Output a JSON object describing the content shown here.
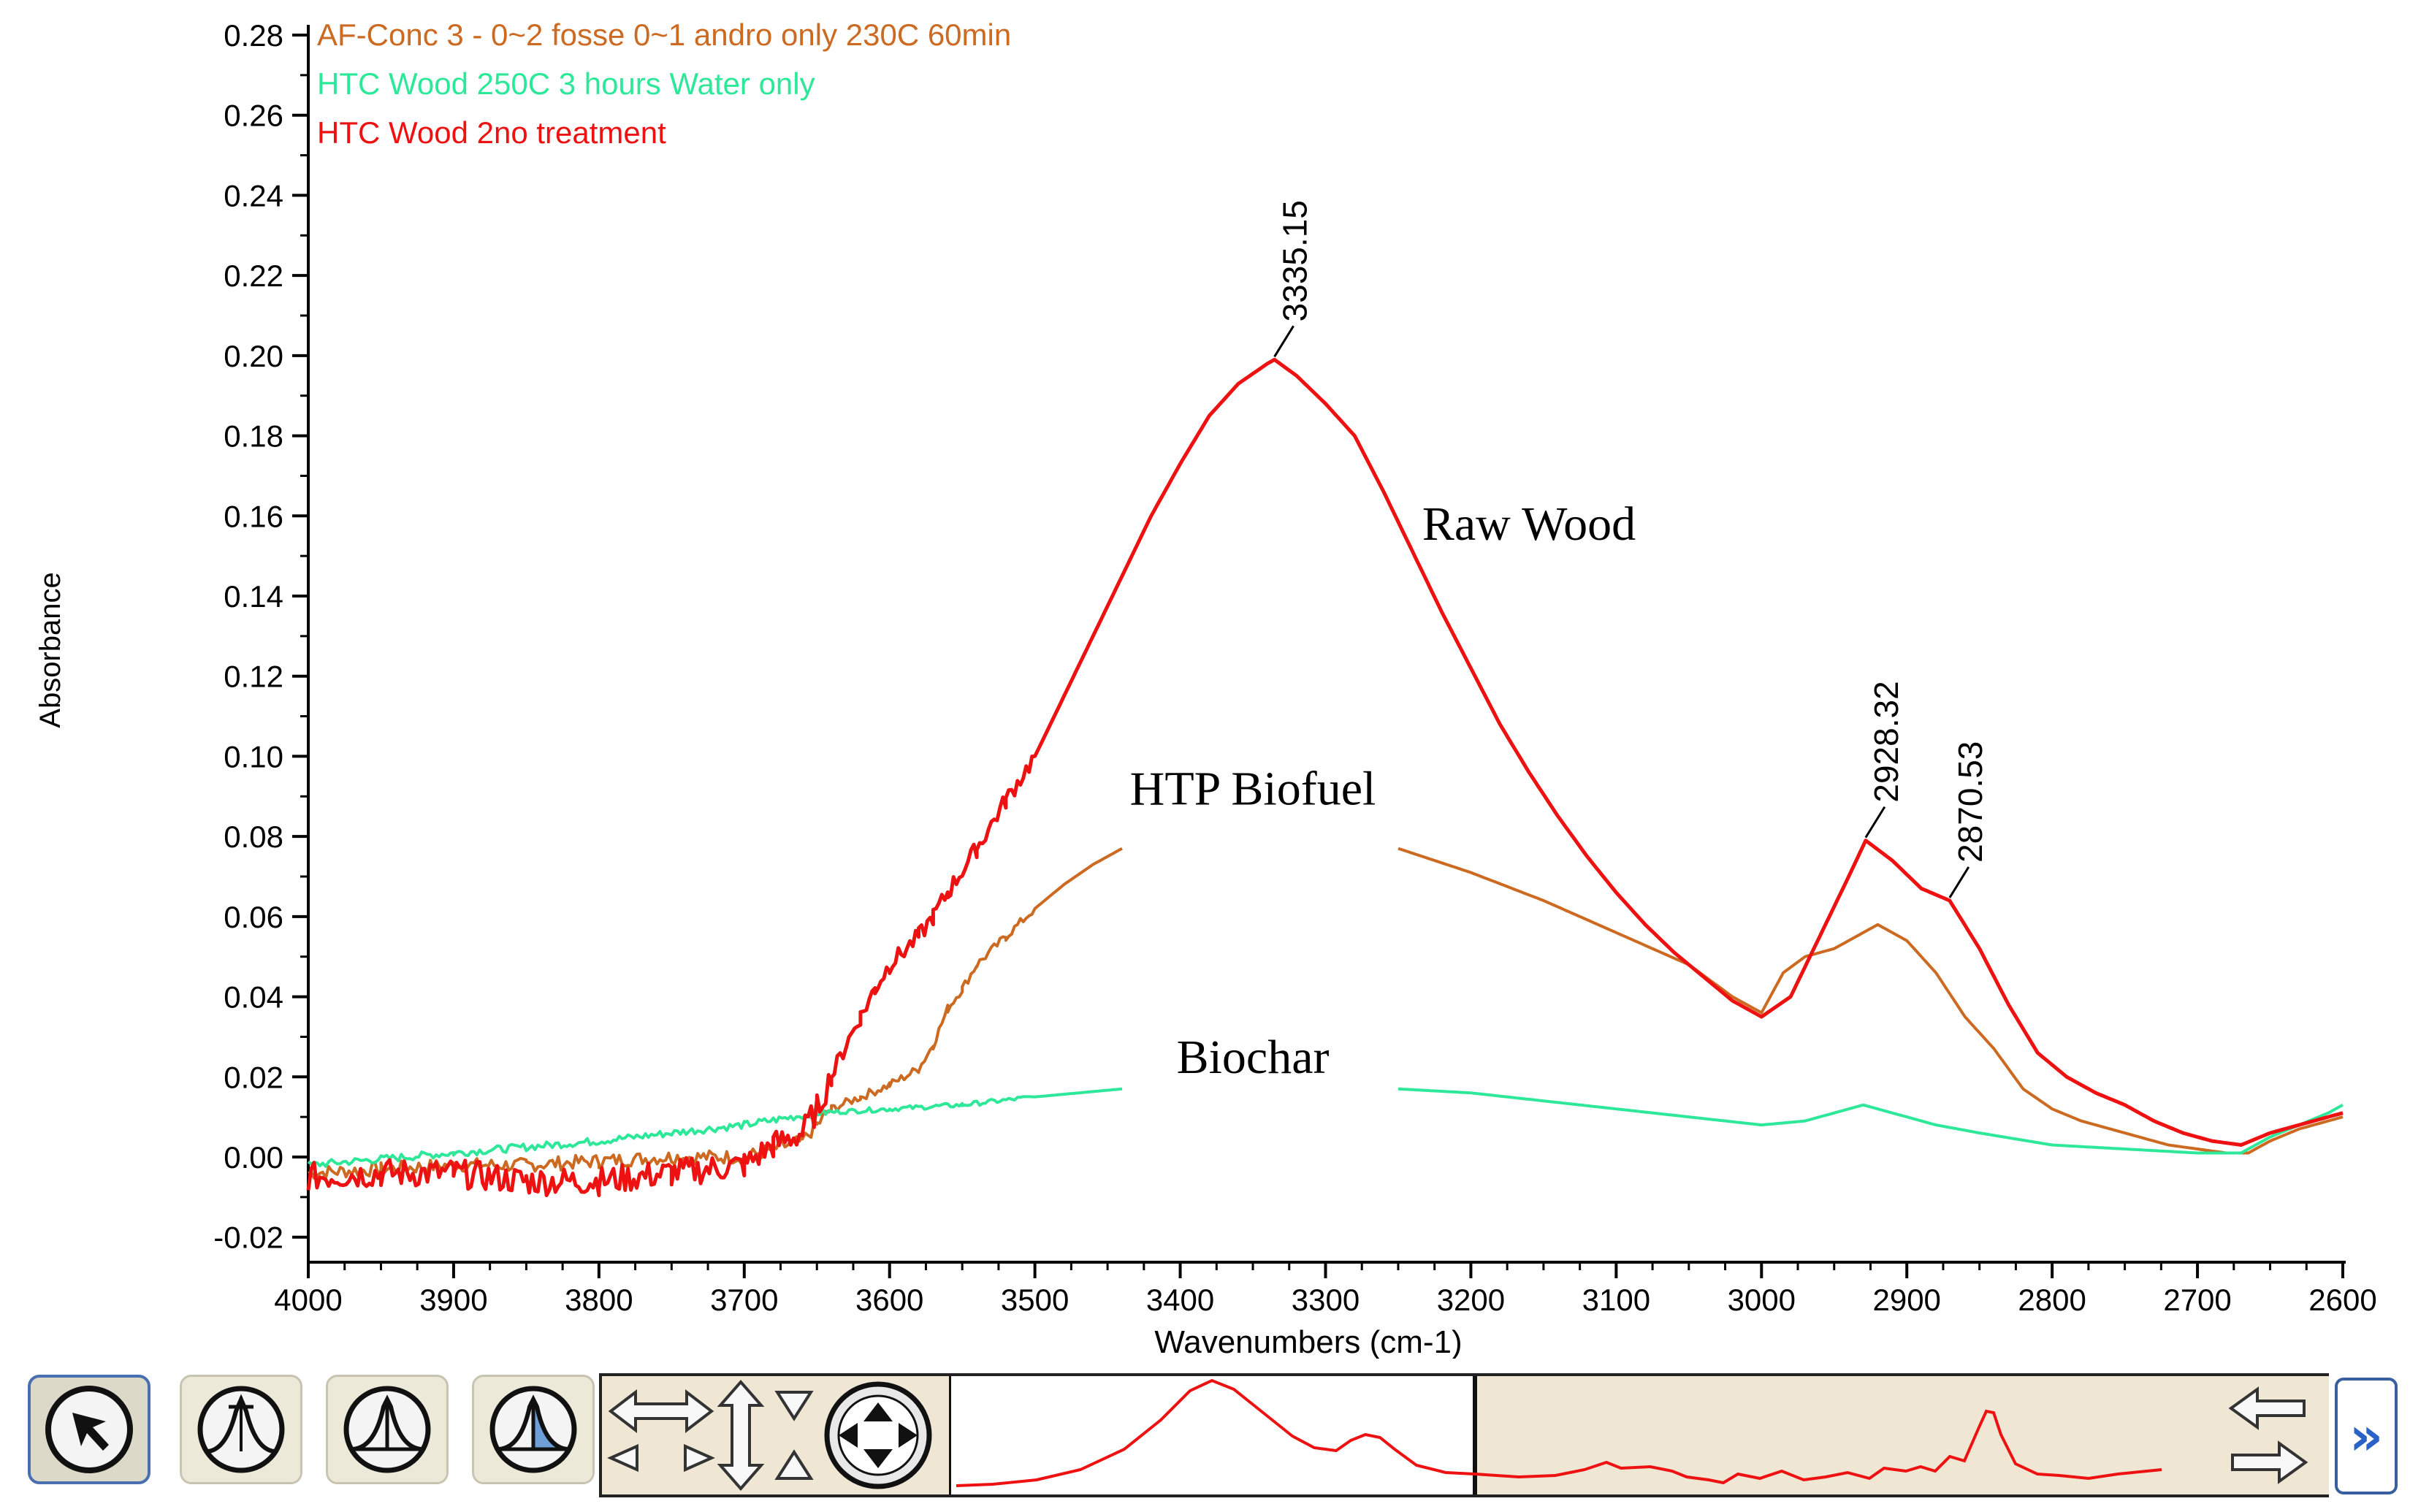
{
  "chart_data": {
    "type": "line",
    "xlabel": "Wavenumbers (cm-1)",
    "ylabel": "Absorbance",
    "xlim": [
      4000,
      2600
    ],
    "ylim": [
      -0.03,
      0.28
    ],
    "x_reversed": true,
    "xticks": [
      "4000",
      "3900",
      "3800",
      "3700",
      "3600",
      "3500",
      "3400",
      "3300",
      "3200",
      "3100",
      "3000",
      "2900",
      "2800",
      "2700",
      "2600"
    ],
    "yticks": [
      "-0.02",
      "0.00",
      "0.02",
      "0.04",
      "0.06",
      "0.08",
      "0.10",
      "0.12",
      "0.14",
      "0.16",
      "0.18",
      "0.20",
      "0.22",
      "0.24",
      "0.26",
      "0.28"
    ],
    "legend_position": "top-left",
    "series": [
      {
        "name": "AF-Conc 3 - 0~2 fosse 0~1 andro  only 230C 60min",
        "color": "#cc6a22",
        "x": [
          4000,
          3950,
          3900,
          3850,
          3800,
          3750,
          3700,
          3680,
          3660,
          3650,
          3640,
          3620,
          3600,
          3580,
          3570,
          3560,
          3550,
          3540,
          3520,
          3500,
          3480,
          3460,
          3440,
          3250,
          3200,
          3150,
          3100,
          3050,
          3020,
          3000,
          2985,
          2970,
          2950,
          2930,
          2920,
          2900,
          2880,
          2860,
          2840,
          2820,
          2800,
          2780,
          2760,
          2740,
          2720,
          2700,
          2680,
          2665,
          2650,
          2630,
          2610,
          2600
        ],
        "y": [
          -0.004,
          -0.003,
          -0.002,
          -0.002,
          -0.001,
          0.0,
          0.0,
          0.002,
          0.004,
          0.008,
          0.012,
          0.015,
          0.018,
          0.022,
          0.028,
          0.037,
          0.042,
          0.048,
          0.055,
          0.062,
          0.068,
          0.073,
          0.077,
          0.077,
          0.071,
          0.064,
          0.056,
          0.048,
          0.04,
          0.036,
          0.046,
          0.05,
          0.052,
          0.056,
          0.058,
          0.054,
          0.046,
          0.035,
          0.027,
          0.017,
          0.012,
          0.009,
          0.007,
          0.005,
          0.003,
          0.002,
          0.001,
          0.001,
          0.004,
          0.007,
          0.009,
          0.01
        ]
      },
      {
        "name": "HTC Wood 250C 3 hours Water only",
        "color": "#2ee89a",
        "x": [
          4000,
          3900,
          3800,
          3700,
          3650,
          3600,
          3550,
          3500,
          3440,
          3250,
          3200,
          3150,
          3100,
          3050,
          3000,
          2970,
          2950,
          2930,
          2910,
          2880,
          2850,
          2800,
          2750,
          2700,
          2670,
          2650,
          2630,
          2610,
          2600
        ],
        "y": [
          -0.002,
          0.001,
          0.004,
          0.008,
          0.011,
          0.012,
          0.013,
          0.015,
          0.017,
          0.017,
          0.016,
          0.014,
          0.012,
          0.01,
          0.008,
          0.009,
          0.011,
          0.013,
          0.011,
          0.008,
          0.006,
          0.003,
          0.002,
          0.001,
          0.001,
          0.005,
          0.008,
          0.011,
          0.013
        ]
      },
      {
        "name": "HTC Wood 2no treatment",
        "color": "#ee1111",
        "x": [
          4000,
          3950,
          3900,
          3850,
          3800,
          3750,
          3700,
          3680,
          3660,
          3650,
          3640,
          3630,
          3620,
          3610,
          3600,
          3580,
          3570,
          3560,
          3540,
          3520,
          3500,
          3480,
          3460,
          3440,
          3420,
          3400,
          3380,
          3360,
          3340,
          3335.15,
          3320,
          3300,
          3280,
          3260,
          3240,
          3220,
          3200,
          3180,
          3160,
          3140,
          3120,
          3100,
          3080,
          3060,
          3040,
          3020,
          3000,
          2980,
          2960,
          2940,
          2928.32,
          2910,
          2890,
          2870.53,
          2850,
          2830,
          2810,
          2790,
          2770,
          2750,
          2730,
          2710,
          2690,
          2670,
          2650,
          2630,
          2610,
          2600
        ],
        "y": [
          -0.005,
          -0.004,
          -0.004,
          -0.006,
          -0.006,
          -0.004,
          -0.002,
          0.003,
          0.006,
          0.012,
          0.02,
          0.028,
          0.035,
          0.042,
          0.048,
          0.055,
          0.06,
          0.066,
          0.077,
          0.089,
          0.1,
          0.115,
          0.13,
          0.145,
          0.16,
          0.173,
          0.185,
          0.193,
          0.198,
          0.199,
          0.195,
          0.188,
          0.18,
          0.166,
          0.151,
          0.136,
          0.122,
          0.108,
          0.096,
          0.085,
          0.075,
          0.066,
          0.058,
          0.051,
          0.045,
          0.039,
          0.035,
          0.04,
          0.055,
          0.07,
          0.079,
          0.074,
          0.067,
          0.064,
          0.052,
          0.038,
          0.026,
          0.02,
          0.016,
          0.013,
          0.009,
          0.006,
          0.004,
          0.003,
          0.006,
          0.008,
          0.01,
          0.011
        ]
      }
    ],
    "peak_labels": [
      {
        "text": "3335.15",
        "x": 3335.15,
        "y": 0.199
      },
      {
        "text": "2928.32",
        "x": 2928.32,
        "y": 0.079
      },
      {
        "text": "2870.53",
        "x": 2870.53,
        "y": 0.064
      }
    ],
    "annotations": [
      {
        "text": "Raw Wood",
        "x": 3160,
        "y": 0.154
      },
      {
        "text": "HTP Biofuel",
        "x": 3350,
        "y": 0.088
      },
      {
        "text": "Biochar",
        "x": 3350,
        "y": 0.021
      }
    ]
  },
  "toolbar": {
    "buttons": [
      {
        "icon": "select-arrow-icon"
      },
      {
        "icon": "peak-pick-icon"
      },
      {
        "icon": "peak-height-icon"
      },
      {
        "icon": "peak-area-icon"
      }
    ],
    "more_label": "»"
  }
}
